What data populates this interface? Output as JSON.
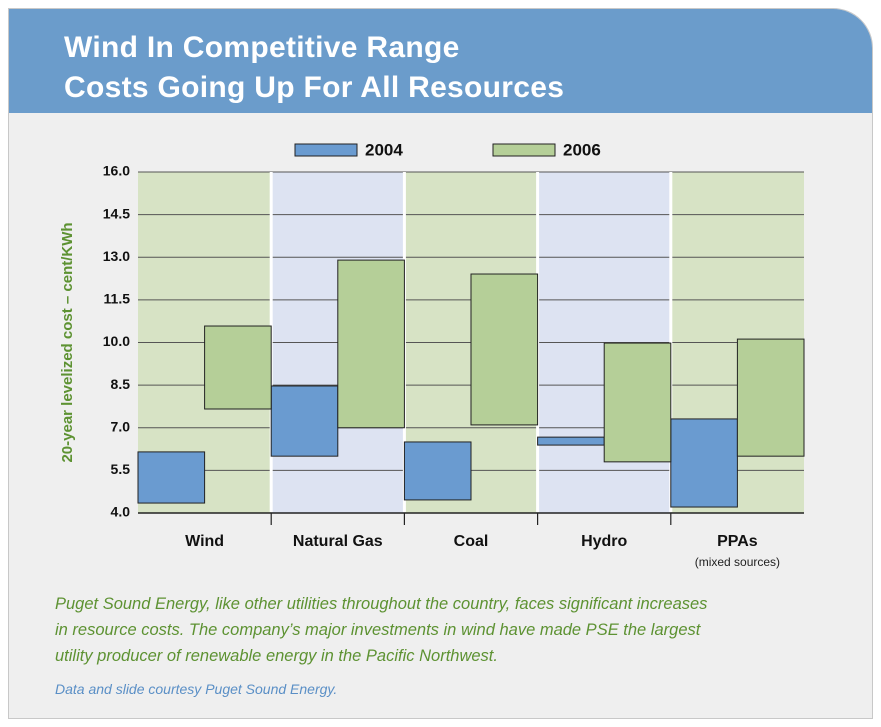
{
  "chart_data": {
    "type": "range-bar",
    "title": "Wind In Competitive Range",
    "subtitle": "Costs Going Up For All Resources",
    "ylabel": "20-year levelized cost – cent/KWh",
    "categories": [
      "Wind",
      "Natural Gas",
      "Coal",
      "Hydro",
      "PPAs"
    ],
    "annotations": [
      "(mixed sources)"
    ],
    "series": [
      {
        "name": "2004",
        "color": "#6a9bd0",
        "low": [
          4.35,
          6.0,
          4.46,
          6.39,
          4.21
        ],
        "high": [
          6.15,
          8.47,
          6.5,
          6.67,
          7.31
        ]
      },
      {
        "name": "2006",
        "color": "#b5cf98",
        "low": [
          7.66,
          7.0,
          7.1,
          5.8,
          6.0
        ],
        "high": [
          10.58,
          12.9,
          12.41,
          9.98,
          10.12
        ]
      }
    ],
    "ylim": [
      4,
      16
    ],
    "yticks": [
      {
        "value": 4,
        "label": "4.0"
      },
      5.5,
      {
        "value": 7,
        "label": "7.0"
      },
      8.5,
      {
        "value": 10,
        "label": "10.0"
      },
      11.5,
      {
        "value": 13,
        "label": "13.0"
      },
      14.5,
      {
        "value": 16,
        "label": "16.0"
      }
    ],
    "grid": true,
    "band_colors": [
      "#d7e3c5",
      "#dde3f2"
    ],
    "caption": [
      "Puget Sound Energy, like other utilities throughout the country, faces significant increases",
      "in resource costs. The company’s major investments in wind have made PSE the largest",
      "utility producer of renewable energy in the Pacific Northwest."
    ],
    "credit": "Data and slide courtesy Puget Sound Energy."
  }
}
